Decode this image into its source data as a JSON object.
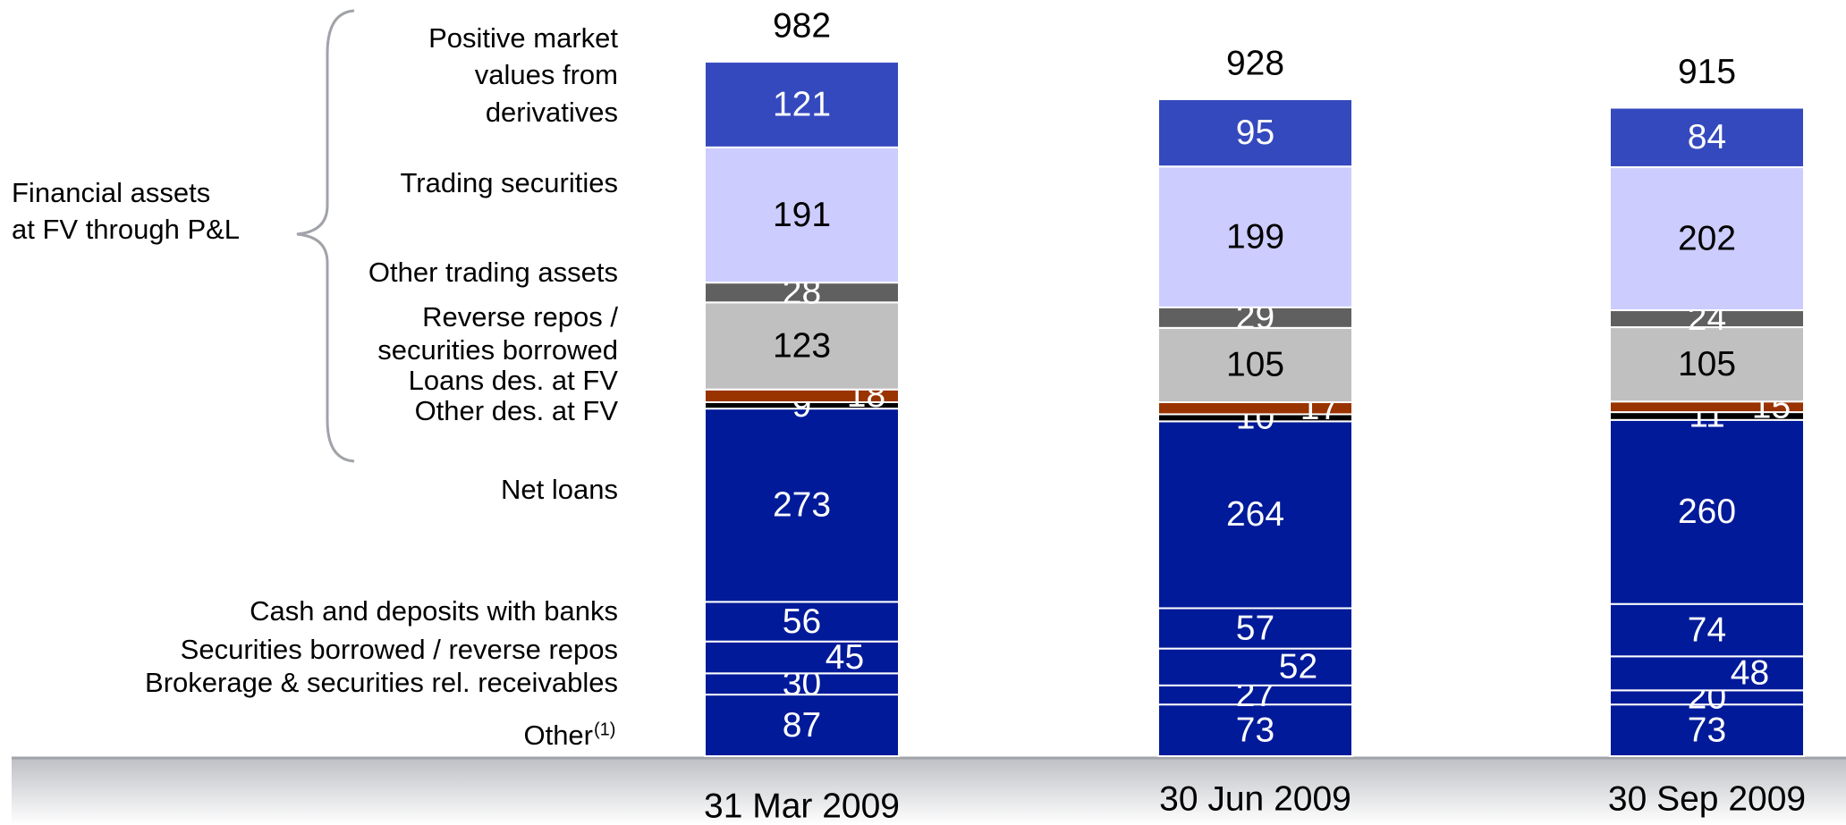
{
  "chart_data": {
    "type": "stacked_bar",
    "group_label": [
      "Financial assets",
      "at FV through P&L"
    ],
    "categories": [
      "31 Mar 2009",
      "30 Jun 2009",
      "30 Sep 2009"
    ],
    "totals": [
      982,
      928,
      915
    ],
    "series": [
      {
        "name": "Other",
        "note_marker": "(1)",
        "color": "#001a99",
        "values": [
          87,
          73,
          73
        ]
      },
      {
        "name": "Brokerage & securities rel. receivables",
        "color": "#001a99",
        "values": [
          30,
          27,
          20
        ]
      },
      {
        "name": "Securities borrowed / reverse repos",
        "color": "#001a99",
        "values": [
          45,
          52,
          48
        ]
      },
      {
        "name": "Cash and deposits with banks",
        "color": "#001a99",
        "values": [
          56,
          57,
          74
        ]
      },
      {
        "name": "Net loans",
        "color": "#001a99",
        "values": [
          273,
          264,
          260
        ]
      },
      {
        "name": "Other des. at FV",
        "color": "#000000",
        "values": [
          9,
          10,
          11
        ]
      },
      {
        "name": "Loans des. at FV",
        "color": "#993300",
        "values": [
          18,
          17,
          15
        ]
      },
      {
        "name": "Reverse repos /\nsecurities borrowed",
        "color": "#c0c0c0",
        "values": [
          123,
          105,
          105
        ]
      },
      {
        "name": "Other trading assets",
        "color": "#606060",
        "values": [
          28,
          29,
          24
        ]
      },
      {
        "name": "Trading securities",
        "color": "#ccccff",
        "values": [
          191,
          199,
          202
        ]
      },
      {
        "name": "Positive market\nvalues from\nderivatives",
        "color": "#3549be",
        "values": [
          121,
          95,
          84
        ]
      }
    ]
  }
}
